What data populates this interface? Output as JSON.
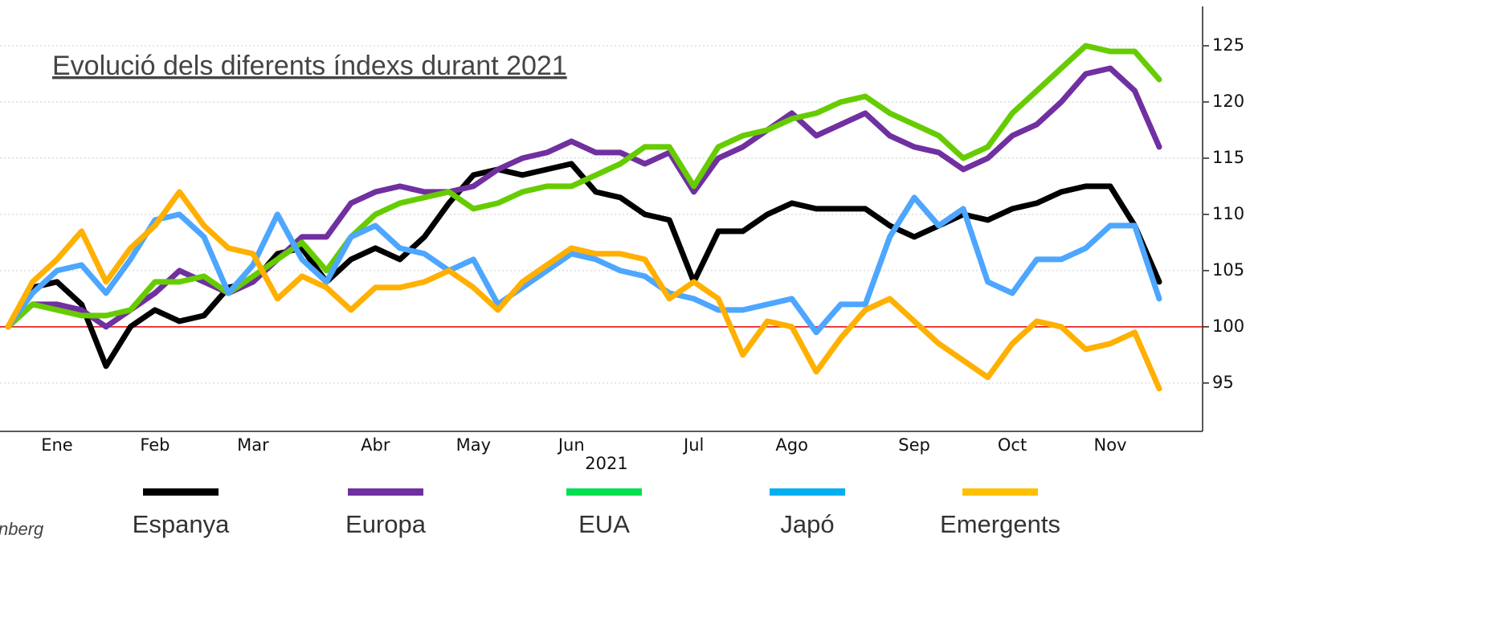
{
  "chart_data": {
    "type": "line",
    "title": "Evolució dels diferents índexs durant 2021",
    "x_label": "2021",
    "source": "nberg",
    "categories": [
      null,
      null,
      "Ene",
      null,
      null,
      null,
      "Feb",
      null,
      null,
      null,
      "Mar",
      null,
      null,
      null,
      null,
      "Abr",
      null,
      null,
      null,
      "May",
      null,
      null,
      null,
      "Jun",
      null,
      null,
      null,
      null,
      "Jul",
      null,
      null,
      null,
      "Ago",
      null,
      null,
      null,
      null,
      "Sep",
      null,
      null,
      null,
      "Oct",
      null,
      null,
      null,
      "Nov",
      null,
      null
    ],
    "series": [
      {
        "name": "Espanya",
        "color": "#000000",
        "values": [
          100,
          103.5,
          104,
          102,
          96.5,
          100,
          101.5,
          100.5,
          101,
          103.5,
          104,
          106.5,
          107,
          104,
          106,
          107,
          106,
          108,
          111,
          113.5,
          114,
          113.5,
          114,
          114.5,
          112,
          111.5,
          110,
          109.5,
          104,
          108.5,
          108.5,
          110,
          111,
          110.5,
          110.5,
          110.5,
          109,
          108,
          109,
          110,
          109.5,
          110.5,
          111,
          112,
          112.5,
          112.5,
          109,
          104
        ]
      },
      {
        "name": "Europa",
        "color": "#7030a0",
        "values": [
          100,
          102,
          102,
          101.5,
          100,
          101.5,
          103,
          105,
          104,
          103,
          104,
          106,
          108,
          108,
          111,
          112,
          112.5,
          112,
          112,
          112.5,
          114,
          115,
          115.5,
          116.5,
          115.5,
          115.5,
          114.5,
          115.5,
          112,
          115,
          116,
          117.5,
          119,
          117,
          118,
          119,
          117,
          116,
          115.5,
          114,
          115,
          117,
          118,
          120,
          122.5,
          123,
          121,
          116
        ]
      },
      {
        "name": "EUA",
        "color": "#66cc00",
        "values": [
          100,
          102,
          101.5,
          101,
          101,
          101.5,
          104,
          104,
          104.5,
          103,
          104.5,
          106,
          107.5,
          105,
          108,
          110,
          111,
          111.5,
          112,
          110.5,
          111,
          112,
          112.5,
          112.5,
          113.5,
          114.5,
          116,
          116,
          112.5,
          116,
          117,
          117.5,
          118.5,
          119,
          120,
          120.5,
          119,
          118,
          117,
          115,
          116,
          119,
          121,
          123,
          125,
          124.5,
          124.5,
          122
        ]
      },
      {
        "name": "Japó",
        "color": "#4da6ff",
        "values": [
          100,
          103,
          105,
          105.5,
          103,
          106,
          109.5,
          110,
          108,
          103,
          105.5,
          110,
          106,
          104,
          108,
          109,
          107,
          106.5,
          105,
          106,
          102,
          103.5,
          105,
          106.5,
          106,
          105,
          104.5,
          103,
          102.5,
          101.5,
          101.5,
          102,
          102.5,
          99.5,
          102,
          102,
          108,
          111.5,
          109,
          110.5,
          104,
          103,
          106,
          106,
          107,
          109,
          109,
          102.5
        ]
      },
      {
        "name": "Emergents",
        "color": "#ffb000",
        "values": [
          100,
          104,
          106,
          108.5,
          104,
          107,
          109,
          112,
          109,
          107,
          106.5,
          102.5,
          104.5,
          103.5,
          101.5,
          103.5,
          103.5,
          104,
          105,
          103.5,
          101.5,
          104,
          105.5,
          107,
          106.5,
          106.5,
          106,
          102.5,
          104,
          102.5,
          97.5,
          100.5,
          100,
          96,
          99,
          101.5,
          102.5,
          100.5,
          98.5,
          97,
          95.5,
          98.5,
          100.5,
          100,
          98,
          98.5,
          99.5,
          94.5
        ]
      }
    ],
    "legend_colors": [
      "#000000",
      "#7030a0",
      "#00e050",
      "#00b0f0",
      "#ffc000"
    ],
    "reference_line": {
      "value": 100,
      "color": "#e00000"
    },
    "ylim": [
      90.7,
      128.5
    ],
    "yticks": [
      95,
      100,
      105,
      110,
      115,
      120,
      125
    ],
    "grid": true,
    "legend": "bottom"
  }
}
